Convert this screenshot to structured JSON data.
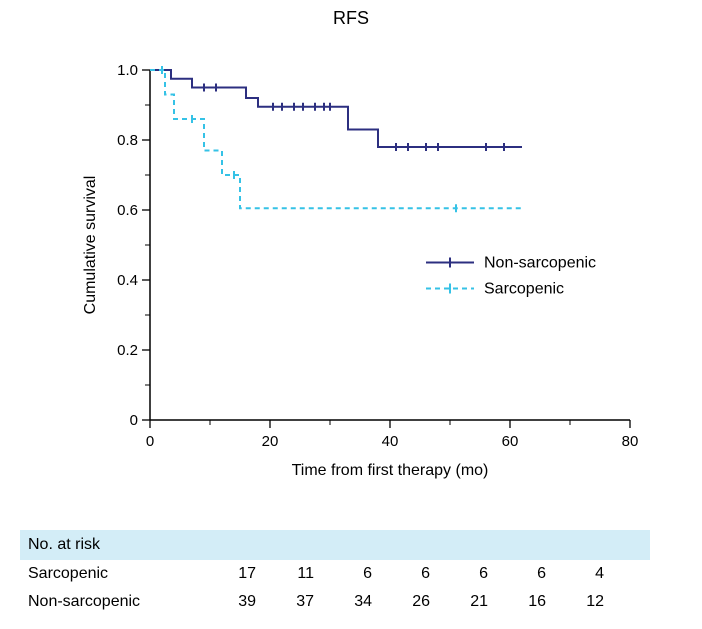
{
  "chart": {
    "type": "kaplan-meier",
    "title": "RFS",
    "title_fontsize": 18,
    "xlabel": "Time from first therapy (mo)",
    "ylabel": "Cumulative survival",
    "label_fontsize": 16,
    "tick_fontsize": 15,
    "background_color": "#ffffff",
    "axis_color": "#000000",
    "tick_length_major": 8,
    "tick_length_minor": 5,
    "xlim": [
      0,
      80
    ],
    "ylim": [
      0,
      1.0
    ],
    "xticks": [
      0,
      20,
      40,
      60,
      80
    ],
    "xticks_minor": [
      10,
      30,
      50,
      70
    ],
    "yticks": [
      0,
      0.2,
      0.4,
      0.6,
      0.8,
      1.0
    ],
    "yticks_minor": [
      0.1,
      0.3,
      0.5,
      0.7,
      0.9
    ],
    "ytick_labels": [
      "0",
      "0.2",
      "0.4",
      "0.6",
      "0.8",
      "1.0"
    ],
    "line_width": 2,
    "censor_tick_height": 8,
    "series": [
      {
        "name": "Non-sarcopenic",
        "color": "#2c2f80",
        "dash": "solid",
        "legend_label": "Non-sarcopenic",
        "steps": [
          {
            "x": 0,
            "y": 1.0
          },
          {
            "x": 3.5,
            "y": 0.975
          },
          {
            "x": 7,
            "y": 0.95
          },
          {
            "x": 16,
            "y": 0.92
          },
          {
            "x": 18,
            "y": 0.895
          },
          {
            "x": 33,
            "y": 0.83
          },
          {
            "x": 38,
            "y": 0.78
          },
          {
            "x": 62,
            "y": 0.78
          }
        ],
        "censors": [
          {
            "x": 9,
            "y": 0.95
          },
          {
            "x": 11,
            "y": 0.95
          },
          {
            "x": 20.5,
            "y": 0.895
          },
          {
            "x": 22,
            "y": 0.895
          },
          {
            "x": 24,
            "y": 0.895
          },
          {
            "x": 25.5,
            "y": 0.895
          },
          {
            "x": 27.5,
            "y": 0.895
          },
          {
            "x": 29,
            "y": 0.895
          },
          {
            "x": 30,
            "y": 0.895
          },
          {
            "x": 41,
            "y": 0.78
          },
          {
            "x": 43,
            "y": 0.78
          },
          {
            "x": 46,
            "y": 0.78
          },
          {
            "x": 48,
            "y": 0.78
          },
          {
            "x": 56,
            "y": 0.78
          },
          {
            "x": 59,
            "y": 0.78
          }
        ]
      },
      {
        "name": "Sarcopenic",
        "color": "#35c2e6",
        "dash": "5,4",
        "legend_label": "Sarcopenic",
        "steps": [
          {
            "x": 0,
            "y": 1.0
          },
          {
            "x": 2.5,
            "y": 0.93
          },
          {
            "x": 4,
            "y": 0.86
          },
          {
            "x": 9,
            "y": 0.77
          },
          {
            "x": 12,
            "y": 0.7
          },
          {
            "x": 15,
            "y": 0.605
          },
          {
            "x": 62,
            "y": 0.605
          }
        ],
        "censors": [
          {
            "x": 2,
            "y": 1.0
          },
          {
            "x": 7,
            "y": 0.86
          },
          {
            "x": 14,
            "y": 0.7
          },
          {
            "x": 51,
            "y": 0.605
          }
        ]
      }
    ],
    "legend": {
      "x": 46,
      "y_start": 0.45,
      "line_length": 8,
      "fontsize": 16
    }
  },
  "risk_table": {
    "header": "No. at risk",
    "header_bg": "#d3edf7",
    "fontsize": 16,
    "timepoints": [
      0,
      10,
      20,
      30,
      40,
      50,
      60
    ],
    "rows": [
      {
        "label": "Sarcopenic",
        "values": [
          17,
          11,
          6,
          6,
          6,
          6,
          4
        ]
      },
      {
        "label": "Non-sarcopenic",
        "values": [
          39,
          37,
          34,
          26,
          21,
          16,
          12
        ]
      }
    ]
  }
}
